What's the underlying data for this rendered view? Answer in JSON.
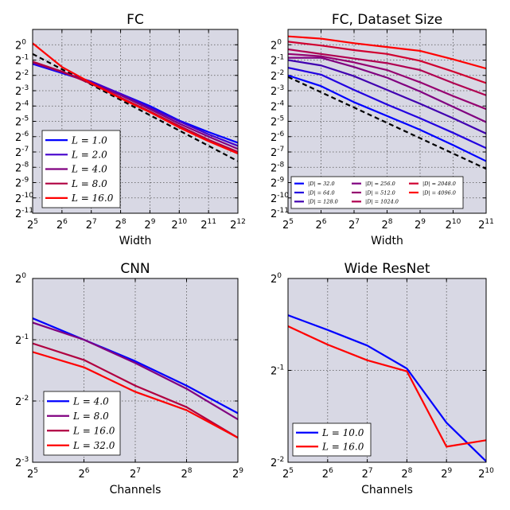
{
  "chart_data": [
    {
      "type": "line",
      "title": "FC",
      "xlabel": "Width",
      "ylabel": "",
      "xscale": "log2",
      "yscale": "log2",
      "xlim_exp": [
        5,
        12
      ],
      "ylim_exp": [
        -11,
        1
      ],
      "xticks": [
        "5",
        "6",
        "7",
        "8",
        "9",
        "10",
        "11",
        "12"
      ],
      "yticks": [
        "0",
        "-1",
        "-2",
        "-3",
        "-4",
        "-5",
        "-6",
        "-7",
        "-8",
        "-9",
        "-10",
        "-11"
      ],
      "x": [
        32,
        64,
        128,
        256,
        512,
        1024,
        2048,
        4096
      ],
      "series": [
        {
          "name": "L = 1.0",
          "color": "#0000ff",
          "values_log2": [
            -1.25,
            -1.85,
            -2.45,
            -3.2,
            -4.0,
            -4.95,
            -5.7,
            -6.4
          ]
        },
        {
          "name": "L = 2.0",
          "color": "#4400cc",
          "values_log2": [
            -1.2,
            -1.8,
            -2.4,
            -3.2,
            -4.1,
            -5.0,
            -5.85,
            -6.6
          ]
        },
        {
          "name": "L = 4.0",
          "color": "#800080",
          "values_log2": [
            -1.15,
            -1.75,
            -2.5,
            -3.3,
            -4.2,
            -5.15,
            -6.0,
            -6.8
          ]
        },
        {
          "name": "L = 8.0",
          "color": "#b00040",
          "values_log2": [
            -1.1,
            -1.75,
            -2.55,
            -3.45,
            -4.35,
            -5.3,
            -6.2,
            -7.0
          ]
        },
        {
          "name": "L = 16.0",
          "color": "#ff0000",
          "values_log2": [
            0.1,
            -1.45,
            -2.5,
            -3.5,
            -4.4,
            -5.4,
            -6.3,
            -7.1
          ]
        }
      ],
      "reference_line": {
        "style": "dashed",
        "color": "#000000",
        "values_log2": [
          -0.6,
          -1.6,
          -2.6,
          -3.6,
          -4.6,
          -5.6,
          -6.6,
          -7.6
        ]
      },
      "legend": "lower-left",
      "grid": true
    },
    {
      "type": "line",
      "title": "FC, Dataset Size",
      "xlabel": "Width",
      "ylabel": "",
      "xscale": "log2",
      "yscale": "log2",
      "xlim_exp": [
        5,
        11
      ],
      "ylim_exp": [
        -11,
        1
      ],
      "xticks": [
        "5",
        "6",
        "7",
        "8",
        "9",
        "10",
        "11"
      ],
      "yticks": [
        "0",
        "-1",
        "-2",
        "-3",
        "-4",
        "-5",
        "-6",
        "-7",
        "-8",
        "-9",
        "-10",
        "-11"
      ],
      "x": [
        32,
        64,
        128,
        256,
        512,
        1024,
        2048
      ],
      "series": [
        {
          "name": "|D| = 32.0",
          "color": "#0000ff",
          "values_log2": [
            -2.0,
            -2.7,
            -3.75,
            -4.65,
            -5.55,
            -6.55,
            -7.6
          ]
        },
        {
          "name": "|D| = 64.0",
          "color": "#2200e0",
          "values_log2": [
            -1.5,
            -1.95,
            -2.95,
            -3.9,
            -4.8,
            -5.75,
            -6.75
          ]
        },
        {
          "name": "|D| = 128.0",
          "color": "#4000b0",
          "values_log2": [
            -1.0,
            -1.35,
            -2.05,
            -2.95,
            -3.85,
            -4.8,
            -5.8
          ]
        },
        {
          "name": "|D| = 256.0",
          "color": "#800080",
          "values_log2": [
            -0.85,
            -0.85,
            -1.45,
            -2.15,
            -3.05,
            -4.05,
            -5.05
          ]
        },
        {
          "name": "|D| = 512.0",
          "color": "#950070",
          "values_log2": [
            -0.6,
            -0.75,
            -1.15,
            -1.65,
            -2.45,
            -3.35,
            -4.2
          ]
        },
        {
          "name": "|D| = 1024.0",
          "color": "#b00050",
          "values_log2": [
            -0.3,
            -0.6,
            -0.9,
            -1.2,
            -1.65,
            -2.5,
            -3.3
          ]
        },
        {
          "name": "|D| = 2048.0",
          "color": "#d00030",
          "values_log2": [
            0.2,
            -0.05,
            -0.35,
            -0.6,
            -1.05,
            -1.75,
            -2.5
          ]
        },
        {
          "name": "|D| = 4096.0",
          "color": "#ff0000",
          "values_log2": [
            0.55,
            0.4,
            0.1,
            -0.15,
            -0.4,
            -0.95,
            -1.55
          ]
        }
      ],
      "reference_line": {
        "style": "dashed",
        "color": "#000000",
        "values_log2": [
          -2.1,
          -3.1,
          -4.1,
          -5.1,
          -6.1,
          -7.1,
          -8.1
        ]
      },
      "legend": "lower",
      "grid": true
    },
    {
      "type": "line",
      "title": "CNN",
      "xlabel": "Channels",
      "ylabel": "",
      "xscale": "log2",
      "yscale": "log2",
      "xlim_exp": [
        5,
        9
      ],
      "ylim_exp": [
        -3,
        0
      ],
      "xticks": [
        "5",
        "6",
        "7",
        "8",
        "9"
      ],
      "yticks": [
        "0",
        "-1",
        "-2",
        "-3"
      ],
      "x": [
        32,
        64,
        128,
        256,
        512
      ],
      "series": [
        {
          "name": "L = 4.0",
          "color": "#0000ff",
          "values_log2": [
            -0.65,
            -1.0,
            -1.35,
            -1.75,
            -2.2
          ]
        },
        {
          "name": "L = 8.0",
          "color": "#800080",
          "values_log2": [
            -0.72,
            -1.0,
            -1.38,
            -1.8,
            -2.3
          ]
        },
        {
          "name": "L = 16.0",
          "color": "#b00040",
          "values_log2": [
            -1.06,
            -1.33,
            -1.75,
            -2.1,
            -2.6
          ]
        },
        {
          "name": "L = 32.0",
          "color": "#ff0000",
          "values_log2": [
            -1.2,
            -1.45,
            -1.85,
            -2.15,
            -2.6
          ]
        }
      ],
      "legend": "lower-left",
      "grid": true
    },
    {
      "type": "line",
      "title": "Wide ResNet",
      "xlabel": "Channels",
      "ylabel": "",
      "xscale": "log2",
      "yscale": "log2",
      "xlim_exp": [
        5,
        10
      ],
      "ylim_exp": [
        -2,
        0
      ],
      "xticks": [
        "5",
        "6",
        "7",
        "8",
        "9",
        "10"
      ],
      "yticks": [
        "0",
        "-1",
        "-2"
      ],
      "x": [
        32,
        64,
        128,
        256,
        512,
        1024
      ],
      "series": [
        {
          "name": "L = 10.0",
          "color": "#0000ff",
          "values_log2": [
            -0.4,
            -0.56,
            -0.73,
            -0.98,
            -1.57,
            -1.99
          ]
        },
        {
          "name": "L = 16.0",
          "color": "#ff0000",
          "values_log2": [
            -0.52,
            -0.72,
            -0.89,
            -1.01,
            -1.83,
            -1.76
          ]
        }
      ],
      "legend": "lower-left",
      "grid": true
    }
  ]
}
